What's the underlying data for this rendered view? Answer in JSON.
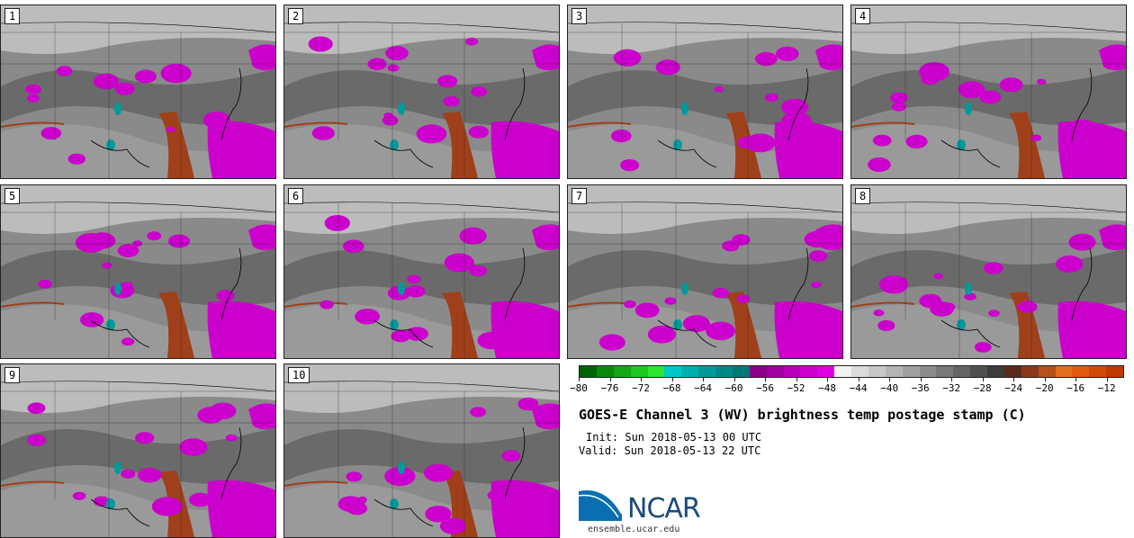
{
  "panels": [
    {
      "label": "1"
    },
    {
      "label": "2"
    },
    {
      "label": "3"
    },
    {
      "label": "4"
    },
    {
      "label": "5"
    },
    {
      "label": "6"
    },
    {
      "label": "7"
    },
    {
      "label": "8"
    },
    {
      "label": "9"
    },
    {
      "label": "10"
    }
  ],
  "colorbar": {
    "colors": [
      "#006400",
      "#0a8a0a",
      "#14a814",
      "#1ec81e",
      "#2ee62e",
      "#00c8c8",
      "#00b0b0",
      "#009a9a",
      "#008888",
      "#007878",
      "#8a0088",
      "#a000a0",
      "#b800b8",
      "#cc00cc",
      "#e000e0",
      "#f2f2f2",
      "#dcdcdc",
      "#c8c8c8",
      "#b4b4b4",
      "#a0a0a0",
      "#8c8c8c",
      "#787878",
      "#646464",
      "#505050",
      "#3c3c3c",
      "#5a2a1a",
      "#8a3a1a",
      "#b8501a",
      "#e07020",
      "#e05a10",
      "#d04a08",
      "#c03a00"
    ],
    "ticks": [
      "−80",
      "−76",
      "−72",
      "−68",
      "−64",
      "−60",
      "−56",
      "−52",
      "−48",
      "−44",
      "−40",
      "−36",
      "−32",
      "−28",
      "−24",
      "−20",
      "−16",
      "−12"
    ],
    "tick_values": [
      -80,
      -76,
      -72,
      -68,
      -64,
      -60,
      -56,
      -52,
      -48,
      -44,
      -40,
      -36,
      -32,
      -28,
      -24,
      -20,
      -16,
      -12
    ],
    "range": [
      -80,
      -10
    ]
  },
  "title": "GOES-E Channel 3 (WV) brightness temp postage stamp (C)",
  "init": "Init: Sun 2018-05-13 00 UTC",
  "valid": "Valid: Sun 2018-05-13 22 UTC",
  "logo": {
    "text": "NCAR",
    "site": "ensemble.ucar.edu"
  },
  "colors": {
    "moist": "#cc00cc",
    "dry": "#a0401a",
    "cold": "#00a0a0"
  }
}
